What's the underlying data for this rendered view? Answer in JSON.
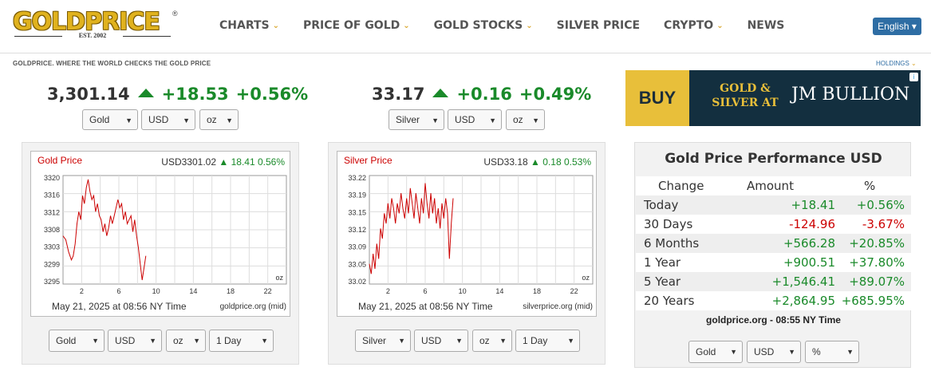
{
  "logo": {
    "name": "GOLDPRICE",
    "est": "EST. 2002",
    "reg": "®"
  },
  "nav": [
    {
      "label": "CHARTS",
      "chevron": true
    },
    {
      "label": "PRICE OF GOLD",
      "chevron": true
    },
    {
      "label": "GOLD STOCKS",
      "chevron": true
    },
    {
      "label": "SILVER PRICE",
      "chevron": false
    },
    {
      "label": "CRYPTO",
      "chevron": true
    },
    {
      "label": "NEWS",
      "chevron": false
    }
  ],
  "language": "English ▾",
  "tagline": "GOLDPRICE. WHERE THE WORLD CHECKS THE GOLD PRICE",
  "holdings": "HOLDINGS",
  "gold_quote": {
    "price": "3,301.14",
    "change": "+18.53",
    "percent": "+0.56%",
    "metal": "Gold",
    "currency": "USD",
    "unit": "oz"
  },
  "silver_quote": {
    "price": "33.17",
    "change": "+0.16",
    "percent": "+0.49%",
    "metal": "Silver",
    "currency": "USD",
    "unit": "oz"
  },
  "ad": {
    "buy": "BUY",
    "line1": "GOLD &",
    "line2": "SILVER AT",
    "brand": "JM BULLION",
    "info": "i"
  },
  "gold_chart": {
    "title": "Gold Price",
    "value": "USD3301.02",
    "change": "18.41",
    "percent": "0.56%",
    "footer": "May 21, 2025 at 08:56 NY Time",
    "source": "goldprice.org (mid)",
    "selectors": {
      "metal": "Gold",
      "currency": "USD",
      "unit": "oz",
      "range": "1 Day"
    }
  },
  "silver_chart": {
    "title": "Silver Price",
    "value": "USD33.18",
    "change": "0.18",
    "percent": "0.53%",
    "footer": "May 21, 2025 at 08:56 NY Time",
    "source": "silverprice.org (mid)",
    "selectors": {
      "metal": "Silver",
      "currency": "USD",
      "unit": "oz",
      "range": "1 Day"
    }
  },
  "chart_data": [
    {
      "type": "line",
      "title": "Gold Price",
      "series": [
        {
          "name": "Gold Price",
          "color": "#cc0000"
        }
      ],
      "xticks": [
        "2",
        "6",
        "10",
        "14",
        "18",
        "22"
      ],
      "yticks": [
        "3320",
        "3316",
        "3312",
        "3308",
        "3303",
        "3299",
        "3295"
      ],
      "unit_label": "oz",
      "ylim": [
        3294,
        3321
      ],
      "xlim": [
        0,
        24
      ],
      "x": [
        0,
        0.3,
        0.6,
        0.9,
        1.1,
        1.3,
        1.5,
        1.7,
        1.9,
        2.1,
        2.3,
        2.5,
        2.7,
        2.9,
        3.1,
        3.3,
        3.5,
        3.7,
        3.9,
        4.1,
        4.3,
        4.5,
        4.7,
        4.9,
        5.1,
        5.3,
        5.5,
        5.7,
        5.9,
        6.1,
        6.3,
        6.5,
        6.7,
        6.9,
        7.1,
        7.3,
        7.5,
        7.7,
        7.9,
        8.1,
        8.3,
        8.5,
        8.7,
        8.9
      ],
      "y": [
        3306,
        3305,
        3302,
        3300,
        3301,
        3304,
        3309,
        3312,
        3310,
        3316,
        3314,
        3318,
        3320,
        3317,
        3315,
        3316,
        3312,
        3314,
        3311,
        3310,
        3307,
        3309,
        3306,
        3308,
        3311,
        3309,
        3311,
        3313,
        3315,
        3313,
        3314,
        3310,
        3312,
        3309,
        3310,
        3311,
        3307,
        3310,
        3306,
        3303,
        3299,
        3295,
        3298,
        3301
      ]
    },
    {
      "type": "line",
      "title": "Silver Price",
      "series": [
        {
          "name": "Silver Price",
          "color": "#cc0000"
        }
      ],
      "xticks": [
        "2",
        "6",
        "10",
        "14",
        "18",
        "22"
      ],
      "yticks": [
        "33.22",
        "33.19",
        "33.15",
        "33.12",
        "33.09",
        "33.05",
        "33.02"
      ],
      "unit_label": "oz",
      "ylim": [
        33.01,
        33.225
      ],
      "xlim": [
        0,
        24
      ],
      "x": [
        0,
        0.2,
        0.4,
        0.6,
        0.8,
        1.0,
        1.2,
        1.4,
        1.6,
        1.8,
        2.0,
        2.2,
        2.4,
        2.6,
        2.8,
        3.0,
        3.2,
        3.4,
        3.6,
        3.8,
        4.0,
        4.2,
        4.4,
        4.6,
        4.8,
        5.0,
        5.2,
        5.4,
        5.6,
        5.8,
        6.0,
        6.2,
        6.4,
        6.6,
        6.8,
        7.0,
        7.2,
        7.4,
        7.6,
        7.8,
        8.0,
        8.2,
        8.4,
        8.6,
        8.8,
        9.0
      ],
      "y": [
        33.05,
        33.03,
        33.07,
        33.04,
        33.09,
        33.06,
        33.12,
        33.1,
        33.15,
        33.13,
        33.17,
        33.14,
        33.18,
        33.16,
        33.13,
        33.17,
        33.15,
        33.19,
        33.16,
        33.14,
        33.18,
        33.15,
        33.2,
        33.17,
        33.14,
        33.19,
        33.16,
        33.13,
        33.18,
        33.15,
        33.21,
        33.17,
        33.14,
        33.19,
        33.15,
        33.18,
        33.13,
        33.16,
        33.12,
        33.17,
        33.14,
        33.18,
        33.15,
        33.06,
        33.13,
        33.18
      ]
    }
  ],
  "performance": {
    "title": "Gold Price Performance USD",
    "headers": [
      "Change",
      "Amount",
      "%"
    ],
    "rows": [
      {
        "period": "Today",
        "amount": "+18.41",
        "pct": "+0.56%",
        "sign": "pos"
      },
      {
        "period": "30 Days",
        "amount": "-124.96",
        "pct": "-3.67%",
        "sign": "neg"
      },
      {
        "period": "6 Months",
        "amount": "+566.28",
        "pct": "+20.85%",
        "sign": "pos"
      },
      {
        "period": "1 Year",
        "amount": "+900.51",
        "pct": "+37.80%",
        "sign": "pos"
      },
      {
        "period": "5 Year",
        "amount": "+1,546.41",
        "pct": "+89.07%",
        "sign": "pos"
      },
      {
        "period": "20 Years",
        "amount": "+2,864.95",
        "pct": "+685.95%",
        "sign": "pos"
      }
    ],
    "footer": "goldprice.org - 08:55 NY Time",
    "selectors": {
      "metal": "Gold",
      "currency": "USD",
      "unit": "%"
    }
  },
  "colors": {
    "accent": "#d8a52a",
    "up": "#1a8a2a",
    "down": "#cc0000",
    "link": "#2e6da4"
  }
}
